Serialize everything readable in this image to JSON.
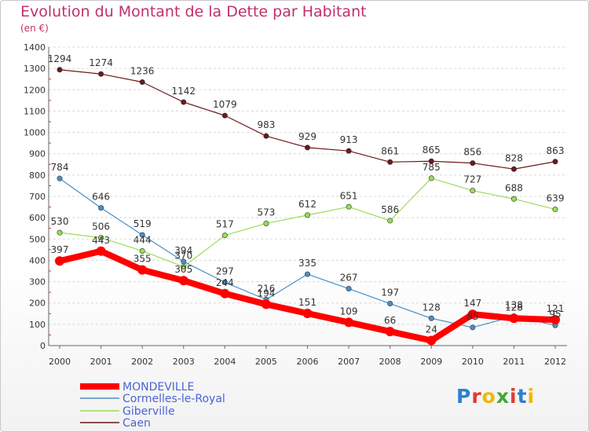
{
  "header": {
    "title": "Evolution du Montant de la Dette par Habitant",
    "unit": "(en €)"
  },
  "logo": {
    "text": "Proxiti"
  },
  "chart_data": {
    "type": "line",
    "title": "Evolution du Montant de la Dette par Habitant",
    "subtitle": "(en €)",
    "xlabel": "",
    "ylabel": "",
    "x": [
      "2000",
      "2001",
      "2002",
      "2003",
      "2004",
      "2005",
      "2006",
      "2007",
      "2008",
      "2009",
      "2010",
      "2011",
      "2012"
    ],
    "ylim": [
      0,
      1400
    ],
    "yticks": [
      0,
      100,
      200,
      300,
      400,
      500,
      600,
      700,
      800,
      900,
      1000,
      1100,
      1200,
      1300,
      1400
    ],
    "grid": "horizontal",
    "legend_position": "bottom-left",
    "series": [
      {
        "name": "MONDEVILLE",
        "color": "#ff0000",
        "values": [
          397,
          443,
          355,
          305,
          244,
          194,
          151,
          109,
          66,
          24,
          147,
          128,
          121
        ]
      },
      {
        "name": "Cormelles-le-Royal",
        "color": "#4a8fc8",
        "values": [
          784,
          646,
          519,
          394,
          297,
          216,
          335,
          267,
          197,
          128,
          85,
          138,
          95
        ]
      },
      {
        "name": "Giberville",
        "color": "#99dd55",
        "values": [
          530,
          506,
          444,
          370,
          517,
          573,
          612,
          651,
          586,
          785,
          727,
          688,
          639
        ]
      },
      {
        "name": "Caen",
        "color": "#6b1a1a",
        "values": [
          1294,
          1274,
          1236,
          1142,
          1079,
          983,
          929,
          913,
          861,
          865,
          856,
          828,
          863
        ]
      }
    ]
  }
}
